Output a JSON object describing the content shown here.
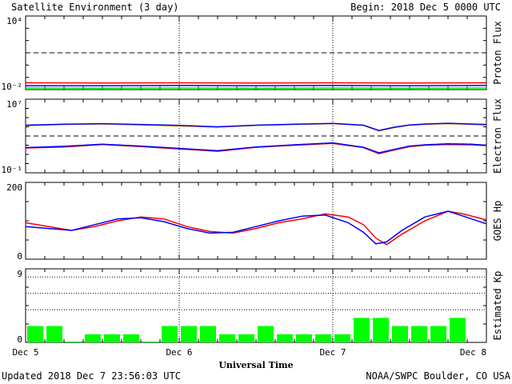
{
  "header": {
    "title": "Satellite Environment (3 day)",
    "begin": "Begin:  2018 Dec 5 0000 UTC"
  },
  "footer": {
    "updated": "Updated 2018 Dec  7 23:56:03 UTC",
    "credit": "NOAA/SWPC Boulder, CO USA",
    "xlabel": "Universal Time"
  },
  "x_ticks": [
    "Dec 5",
    "Dec 6",
    "Dec 7",
    "Dec 8"
  ],
  "colors": {
    "red": "#ff0000",
    "blue": "#0000ff",
    "green": "#00ff00",
    "orange": "#ffa500"
  },
  "chart_data": [
    {
      "type": "line",
      "ylabel": "Proton Flux",
      "y_scale": "log",
      "ylim": [
        0.01,
        10000
      ],
      "y_ticks": [
        "10⁴",
        "10⁻²"
      ],
      "threshold": 10,
      "x": [
        0,
        0.5,
        1,
        1.5,
        2,
        2.5,
        3
      ],
      "series": [
        {
          "color": "red",
          "values": [
            0.036,
            0.035,
            0.036,
            0.035,
            0.036,
            0.035,
            0.036
          ]
        },
        {
          "color": "blue",
          "values": [
            0.021,
            0.021,
            0.022,
            0.021,
            0.022,
            0.021,
            0.022
          ]
        },
        {
          "color": "green",
          "values": [
            0.0135,
            0.013,
            0.0135,
            0.013,
            0.0135,
            0.013,
            0.0135
          ]
        }
      ]
    },
    {
      "type": "line",
      "ylabel": "Electron Flux",
      "y_scale": "log",
      "ylim": [
        0.1,
        10000000
      ],
      "y_ticks": [
        "10⁷",
        "10⁻¹"
      ],
      "threshold": 1000,
      "x": [
        0,
        0.25,
        0.5,
        0.75,
        1,
        1.25,
        1.5,
        1.75,
        2,
        2.2,
        2.3,
        2.4,
        2.5,
        2.6,
        2.75,
        2.9,
        3
      ],
      "series": [
        {
          "color": "orange",
          "values": [
            13000,
            18000,
            20000,
            16000,
            12000,
            9000,
            14000,
            18000,
            22000,
            14000,
            3500,
            8000,
            15000,
            18000,
            22000,
            18000,
            16000
          ]
        },
        {
          "color": "blue",
          "values": [
            15000,
            19000,
            22000,
            18000,
            14000,
            10000,
            15000,
            19000,
            23000,
            15000,
            4000,
            9000,
            16000,
            20000,
            24000,
            20000,
            18000
          ]
        },
        {
          "color": "red",
          "values": [
            50,
            65,
            120,
            70,
            40,
            22,
            60,
            100,
            160,
            55,
            12,
            30,
            70,
            100,
            120,
            110,
            90
          ]
        },
        {
          "color": "blue",
          "values": [
            55,
            75,
            130,
            80,
            45,
            25,
            65,
            110,
            180,
            60,
            15,
            35,
            80,
            110,
            140,
            130,
            100
          ]
        }
      ]
    },
    {
      "type": "line",
      "ylabel": "GOES Hp",
      "ylim": [
        0,
        200
      ],
      "y_ticks": [
        "200",
        "0"
      ],
      "x": [
        0,
        0.15,
        0.3,
        0.45,
        0.6,
        0.75,
        0.9,
        1.05,
        1.2,
        1.35,
        1.5,
        1.65,
        1.8,
        1.95,
        2.1,
        2.2,
        2.28,
        2.35,
        2.45,
        2.6,
        2.75,
        2.85,
        3
      ],
      "series": [
        {
          "color": "red",
          "values": [
            95,
            85,
            75,
            85,
            100,
            110,
            105,
            85,
            72,
            68,
            80,
            95,
            105,
            118,
            110,
            90,
            55,
            38,
            65,
            100,
            125,
            118,
            102
          ]
        },
        {
          "color": "blue",
          "values": [
            85,
            80,
            75,
            90,
            105,
            108,
            98,
            80,
            68,
            70,
            85,
            100,
            112,
            115,
            95,
            70,
            40,
            45,
            75,
            110,
            125,
            112,
            92
          ]
        }
      ]
    },
    {
      "type": "bar",
      "ylabel": "Estimated Kp",
      "ylim": [
        0,
        9
      ],
      "y_ticks": [
        "9",
        "0"
      ],
      "values": [
        2,
        2,
        0,
        1,
        1,
        1,
        0,
        2,
        2,
        2,
        1,
        1,
        2,
        1,
        1,
        1,
        1,
        3,
        3,
        2,
        2,
        2,
        3
      ],
      "color": "green"
    }
  ]
}
